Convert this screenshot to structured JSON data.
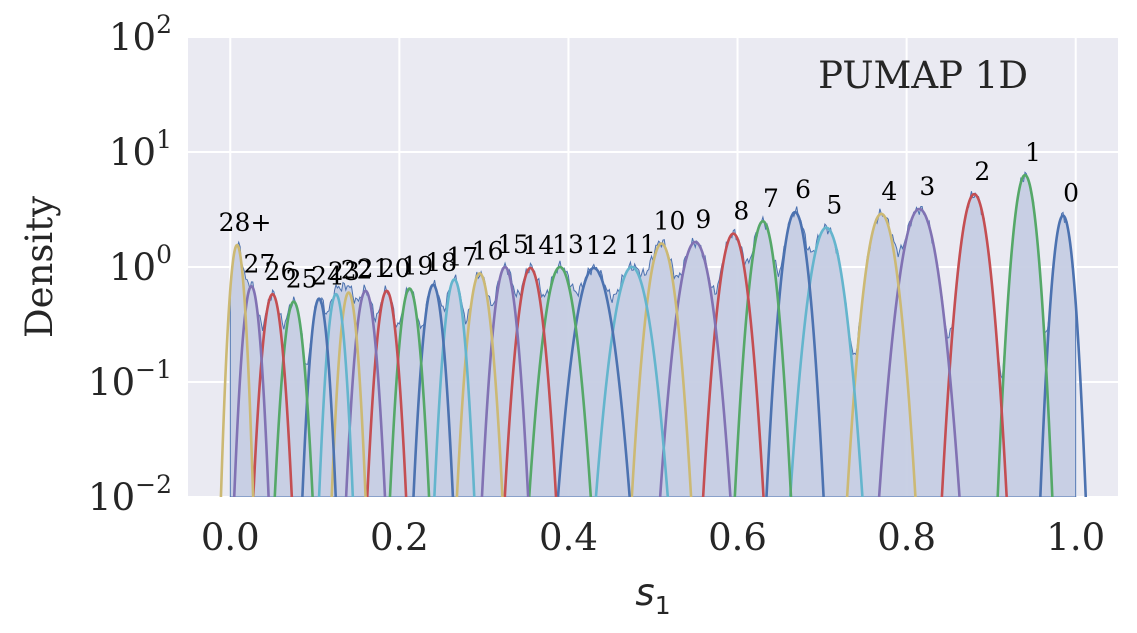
{
  "chart_data": {
    "type": "area",
    "title": "PUMAP 1D",
    "xlabel_base": "s",
    "xlabel_sub": "1",
    "ylabel": "Density",
    "xlim": [
      -0.05,
      1.05
    ],
    "ylim": [
      0.01,
      100
    ],
    "yscale": "log",
    "grid": true,
    "x_ticks": [
      0.0,
      0.2,
      0.4,
      0.6,
      0.8,
      1.0
    ],
    "x_tick_labels": [
      "0.0",
      "0.2",
      "0.4",
      "0.6",
      "0.8",
      "1.0"
    ],
    "y_ticks": [
      0.01,
      0.1,
      1,
      10,
      100
    ],
    "y_tick_labels": [
      {
        "base": "10",
        "exp": "−2"
      },
      {
        "base": "10",
        "exp": "−1"
      },
      {
        "base": "10",
        "exp": "0"
      },
      {
        "base": "10",
        "exp": "1"
      },
      {
        "base": "10",
        "exp": "2"
      }
    ],
    "palette": [
      "#4c72b0",
      "#dd8452",
      "#55a868",
      "#c44e52",
      "#8172b3",
      "#64b5cd",
      "#ccb974"
    ],
    "histogram_fill": "#c6cde3",
    "histogram_edge": "#4c72b0",
    "series": [
      {
        "label": "0",
        "center": 0.985,
        "peak": 2.8,
        "width": 0.008,
        "color": "#4c72b0"
      },
      {
        "label": "1",
        "center": 0.94,
        "peak": 6.3,
        "width": 0.009,
        "color": "#55a868"
      },
      {
        "label": "2",
        "center": 0.88,
        "peak": 4.3,
        "width": 0.011,
        "color": "#c44e52"
      },
      {
        "label": "3",
        "center": 0.815,
        "peak": 3.2,
        "width": 0.014,
        "color": "#8172b3"
      },
      {
        "label": "4",
        "center": 0.77,
        "peak": 2.9,
        "width": 0.012,
        "color": "#ccb974"
      },
      {
        "label": "5",
        "center": 0.705,
        "peak": 2.2,
        "width": 0.013,
        "color": "#64b5cd"
      },
      {
        "label": "6",
        "center": 0.668,
        "peak": 3.0,
        "width": 0.01,
        "color": "#4c72b0"
      },
      {
        "label": "7",
        "center": 0.63,
        "peak": 2.5,
        "width": 0.01,
        "color": "#55a868"
      },
      {
        "label": "8",
        "center": 0.595,
        "peak": 1.95,
        "width": 0.011,
        "color": "#c44e52"
      },
      {
        "label": "9",
        "center": 0.55,
        "peak": 1.65,
        "width": 0.013,
        "color": "#8172b3"
      },
      {
        "label": "10",
        "center": 0.51,
        "peak": 1.6,
        "width": 0.011,
        "color": "#ccb974"
      },
      {
        "label": "11",
        "center": 0.475,
        "peak": 1.0,
        "width": 0.014,
        "color": "#64b5cd"
      },
      {
        "label": "12",
        "center": 0.43,
        "peak": 0.98,
        "width": 0.014,
        "color": "#4c72b0"
      },
      {
        "label": "13",
        "center": 0.39,
        "peak": 1.0,
        "width": 0.012,
        "color": "#55a868"
      },
      {
        "label": "14",
        "center": 0.355,
        "peak": 0.98,
        "width": 0.01,
        "color": "#c44e52"
      },
      {
        "label": "15",
        "center": 0.325,
        "peak": 1.0,
        "width": 0.009,
        "color": "#8172b3"
      },
      {
        "label": "16",
        "center": 0.295,
        "peak": 0.88,
        "width": 0.009,
        "color": "#ccb974"
      },
      {
        "label": "17",
        "center": 0.265,
        "peak": 0.78,
        "width": 0.008,
        "color": "#64b5cd"
      },
      {
        "label": "18",
        "center": 0.24,
        "peak": 0.7,
        "width": 0.008,
        "color": "#4c72b0"
      },
      {
        "label": "19",
        "center": 0.212,
        "peak": 0.65,
        "width": 0.008,
        "color": "#55a868"
      },
      {
        "label": "20",
        "center": 0.185,
        "peak": 0.62,
        "width": 0.008,
        "color": "#c44e52"
      },
      {
        "label": "21",
        "center": 0.16,
        "peak": 0.62,
        "width": 0.008,
        "color": "#8172b3"
      },
      {
        "label": "22",
        "center": 0.14,
        "peak": 0.6,
        "width": 0.007,
        "color": "#ccb974"
      },
      {
        "label": "23",
        "center": 0.125,
        "peak": 0.58,
        "width": 0.007,
        "color": "#64b5cd"
      },
      {
        "label": "24",
        "center": 0.105,
        "peak": 0.53,
        "width": 0.007,
        "color": "#4c72b0"
      },
      {
        "label": "25",
        "center": 0.075,
        "peak": 0.5,
        "width": 0.008,
        "color": "#55a868"
      },
      {
        "label": "26",
        "center": 0.05,
        "peak": 0.58,
        "width": 0.008,
        "color": "#c44e52"
      },
      {
        "label": "27",
        "center": 0.025,
        "peak": 0.68,
        "width": 0.007,
        "color": "#8172b3"
      },
      {
        "label": "28+",
        "center": 0.008,
        "peak": 1.55,
        "width": 0.006,
        "color": "#ccb974"
      }
    ]
  }
}
